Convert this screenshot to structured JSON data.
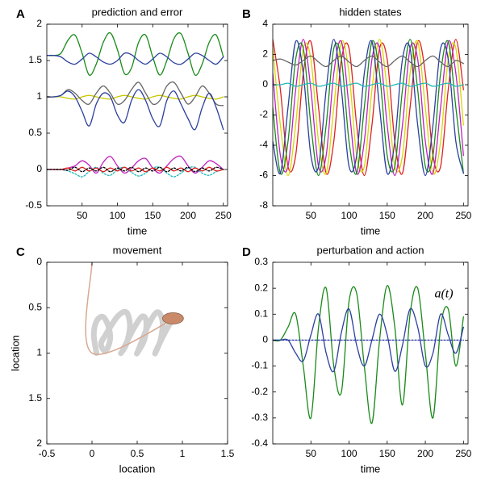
{
  "chart_data": [
    {
      "type": "line",
      "panel": "A",
      "title": "prediction and error",
      "xlabel": "time",
      "xlim": [
        0,
        256
      ],
      "xticks": [
        50,
        100,
        150,
        200,
        250
      ],
      "ylim": [
        -0.5,
        2
      ],
      "yticks": [
        -0.5,
        0,
        0.5,
        1,
        1.5,
        2
      ],
      "x": [
        0,
        10,
        20,
        30,
        40,
        50,
        60,
        70,
        80,
        90,
        100,
        110,
        120,
        130,
        140,
        150,
        160,
        170,
        180,
        190,
        200,
        210,
        220,
        230,
        240,
        250
      ],
      "series": [
        {
          "color": "#1a8a1a",
          "values": [
            1.57,
            1.57,
            1.6,
            1.78,
            1.85,
            1.6,
            1.3,
            1.45,
            1.75,
            1.88,
            1.65,
            1.32,
            1.4,
            1.75,
            1.85,
            1.55,
            1.3,
            1.5,
            1.8,
            1.87,
            1.6,
            1.3,
            1.45,
            1.75,
            1.85,
            1.55
          ]
        },
        {
          "color": "#2b3f9e",
          "values": [
            1.57,
            1.57,
            1.55,
            1.48,
            1.45,
            1.52,
            1.6,
            1.55,
            1.48,
            1.45,
            1.5,
            1.6,
            1.58,
            1.5,
            1.45,
            1.52,
            1.6,
            1.55,
            1.47,
            1.45,
            1.52,
            1.6,
            1.57,
            1.5,
            1.45,
            1.55
          ]
        },
        {
          "color": "#c8c800",
          "values": [
            1,
            1,
            1,
            0.98,
            0.97,
            1,
            1.02,
            1,
            0.98,
            0.97,
            1,
            1.02,
            1,
            0.98,
            0.97,
            1,
            1.02,
            1,
            0.98,
            0.97,
            1,
            1.02,
            1,
            0.98,
            0.97,
            1
          ]
        },
        {
          "color": "#666666",
          "values": [
            1,
            1,
            1.02,
            1.1,
            1.05,
            0.95,
            0.9,
            1.05,
            1.15,
            1.05,
            0.9,
            0.95,
            1.1,
            1.2,
            1.05,
            0.9,
            0.95,
            1.15,
            1.2,
            1.05,
            0.9,
            1.0,
            1.15,
            1.05,
            0.9,
            0.88
          ]
        },
        {
          "color": "#2b3f9e",
          "values": [
            1,
            1,
            1.02,
            1.08,
            1.0,
            0.8,
            0.6,
            0.9,
            1.05,
            1.0,
            0.75,
            0.65,
            0.95,
            1.1,
            0.95,
            0.7,
            0.6,
            0.95,
            1.08,
            0.9,
            0.7,
            0.55,
            0.85,
            1.05,
            0.85,
            0.55
          ]
        },
        {
          "color": "#c020c0",
          "values": [
            0,
            0,
            0,
            0.02,
            0.05,
            0.12,
            0.06,
            -0.05,
            0.1,
            0.18,
            0.05,
            -0.05,
            0.02,
            0.12,
            0.15,
            0.02,
            -0.05,
            0.05,
            0.15,
            0.18,
            0.05,
            -0.05,
            0.03,
            0.12,
            0.08,
            0
          ]
        },
        {
          "color": "#20b8b8",
          "style": "dotted",
          "values": [
            0,
            0,
            0,
            -0.02,
            -0.06,
            -0.1,
            -0.03,
            0.03,
            -0.05,
            -0.08,
            0,
            0.03,
            -0.04,
            -0.09,
            -0.05,
            0.02,
            0.03,
            -0.05,
            -0.1,
            -0.05,
            0.02,
            0.03,
            -0.05,
            -0.08,
            -0.03,
            0
          ]
        },
        {
          "color": "#e02020",
          "values": [
            0,
            0,
            0,
            0.02,
            -0.02,
            0.03,
            -0.02,
            0.02,
            -0.03,
            0.02,
            -0.02,
            0.03,
            -0.02,
            0.02,
            -0.03,
            0.02,
            -0.02,
            0.03,
            -0.02,
            0.02,
            -0.03,
            0.02,
            -0.02,
            0.03,
            -0.02,
            0
          ]
        },
        {
          "color": "#000000",
          "style": "dotted",
          "values": [
            0,
            0,
            0,
            -0.01,
            0.03,
            -0.03,
            0.02,
            -0.02,
            0.03,
            -0.03,
            0.02,
            -0.02,
            0.03,
            -0.03,
            0.02,
            -0.02,
            0.03,
            -0.03,
            0.02,
            -0.02,
            0.03,
            -0.03,
            0.02,
            -0.02,
            0.03,
            0
          ]
        }
      ]
    },
    {
      "type": "line",
      "panel": "B",
      "title": "hidden states",
      "xlabel": "time",
      "xlim": [
        0,
        256
      ],
      "xticks": [
        50,
        100,
        150,
        200,
        250
      ],
      "ylim": [
        -8,
        4
      ],
      "yticks": [
        -8,
        -6,
        -4,
        -2,
        0,
        2,
        4
      ],
      "x": [
        0,
        10,
        20,
        30,
        40,
        50,
        60,
        70,
        80,
        90,
        100,
        110,
        120,
        130,
        140,
        150,
        160,
        170,
        180,
        190,
        200,
        210,
        220,
        230,
        240,
        250
      ],
      "series": [
        {
          "color": "#e02020",
          "values": [
            3,
            -0.33,
            -5.4,
            -4.68,
            0.75,
            2.85,
            -1.5,
            -5.85,
            -3.75,
            1.68,
            2.4,
            -2.67,
            -6,
            -2.67,
            2.4,
            1.68,
            -3.75,
            -5.85,
            -1.5,
            2.85,
            0.75,
            -4.68,
            -5.4,
            -0.33,
            3,
            -0.33
          ]
        },
        {
          "color": "#d8d800",
          "values": [
            2.4,
            -2.67,
            -6,
            -2.67,
            2.4,
            1.68,
            -3.75,
            -5.85,
            -1.5,
            2.85,
            0.75,
            -4.68,
            -5.4,
            -0.33,
            3,
            -0.33,
            -5.4,
            -4.68,
            0.75,
            2.85,
            -1.5,
            -5.85,
            -3.75,
            1.68,
            2.4,
            -2.67
          ]
        },
        {
          "color": "#c020c0",
          "values": [
            0.75,
            -4.68,
            -5.4,
            -0.33,
            3,
            -0.33,
            -5.4,
            -4.68,
            0.75,
            2.85,
            -1.5,
            -5.85,
            -3.75,
            1.68,
            2.4,
            -2.67,
            -6,
            -2.67,
            2.4,
            1.68,
            -3.75,
            -5.85,
            -1.5,
            2.85,
            0.75,
            -4.68
          ]
        },
        {
          "color": "#1a8a1a",
          "values": [
            -1.5,
            -5.85,
            -3.75,
            1.68,
            2.4,
            -2.67,
            -6,
            -2.67,
            2.4,
            1.68,
            -3.75,
            -5.85,
            -1.5,
            2.85,
            0.75,
            -4.68,
            -5.4,
            -0.33,
            3,
            -0.33,
            -5.4,
            -4.68,
            0.75,
            2.85,
            -1.5,
            -5.85
          ]
        },
        {
          "color": "#2b3f9e",
          "values": [
            -3.75,
            -5.85,
            -1.5,
            2.85,
            0.75,
            -4.68,
            -5.4,
            -0.33,
            3,
            -0.33,
            -5.4,
            -4.68,
            0.75,
            2.85,
            -1.5,
            -5.85,
            -3.75,
            1.68,
            2.4,
            -2.67,
            -6,
            -2.67,
            2.4,
            1.68,
            -3.75,
            -5.85
          ]
        },
        {
          "color": "#666666",
          "values": [
            1.6,
            1.7,
            1.5,
            1.3,
            1.6,
            1.9,
            1.5,
            1.2,
            1.6,
            1.9,
            1.5,
            1.2,
            1.6,
            1.9,
            1.5,
            1.2,
            1.6,
            1.9,
            1.5,
            1.2,
            1.6,
            1.9,
            1.5,
            1.2,
            1.6,
            1.4
          ]
        },
        {
          "color": "#20b8b8",
          "values": [
            0,
            0,
            0.1,
            -0.1,
            0,
            0.1,
            -0.1,
            0,
            0.1,
            -0.1,
            0,
            0.1,
            -0.1,
            0,
            0.1,
            -0.1,
            0,
            0.1,
            -0.1,
            0,
            0.1,
            -0.1,
            0,
            0.1,
            -0.1,
            0
          ]
        }
      ]
    },
    {
      "type": "line",
      "panel": "C",
      "title": "movement",
      "xlabel": "location",
      "ylabel": "location",
      "yreverse": true,
      "xlim": [
        -0.5,
        1.5
      ],
      "xticks": [
        -0.5,
        0,
        0.5,
        1,
        1.5
      ],
      "ylim": [
        0,
        2
      ],
      "yticks": [
        0,
        0.5,
        1,
        1.5,
        2
      ],
      "series": [
        {
          "color": "#d0d0d0",
          "width": 7,
          "x": [
            0.05,
            0.02,
            0.05,
            0.12,
            0.18,
            0.2,
            0.15,
            0.1,
            0.15,
            0.28,
            0.38,
            0.42,
            0.38,
            0.32,
            0.35,
            0.45,
            0.55,
            0.6,
            0.58,
            0.5,
            0.52,
            0.62,
            0.72,
            0.78,
            0.76,
            0.7,
            0.72,
            0.82,
            0.9,
            0.95
          ],
          "values": [
            1.0,
            0.8,
            0.65,
            0.6,
            0.7,
            0.85,
            0.98,
            0.9,
            0.8,
            0.6,
            0.55,
            0.7,
            0.9,
            1.0,
            0.95,
            0.75,
            0.6,
            0.65,
            0.85,
            1.0,
            0.95,
            0.7,
            0.55,
            0.65,
            0.85,
            1.0,
            0.95,
            0.75,
            0.62,
            0.6
          ]
        },
        {
          "color": "#d8a890",
          "width": 1.5,
          "x": [
            0,
            0,
            0.95
          ],
          "values": [
            0,
            1,
            0.6
          ]
        }
      ]
    },
    {
      "type": "line",
      "panel": "D",
      "title": "perturbation and action",
      "xlabel": "time",
      "annotation": "a(t)",
      "xlim": [
        0,
        256
      ],
      "xticks": [
        50,
        100,
        150,
        200,
        250
      ],
      "ylim": [
        -0.4,
        0.3
      ],
      "yticks": [
        -0.4,
        -0.3,
        -0.2,
        -0.1,
        0,
        0.1,
        0.2,
        0.3
      ],
      "x": [
        0,
        10,
        20,
        30,
        40,
        50,
        60,
        70,
        80,
        90,
        100,
        110,
        120,
        130,
        140,
        150,
        160,
        170,
        180,
        190,
        200,
        210,
        220,
        230,
        240,
        250
      ],
      "series": [
        {
          "color": "#1a8a1a",
          "values": [
            0,
            0,
            0.05,
            0.1,
            -0.1,
            -0.3,
            0.05,
            0.2,
            -0.1,
            -0.2,
            0.15,
            0.18,
            -0.1,
            -0.32,
            0,
            0.21,
            0.05,
            -0.25,
            0.1,
            0.2,
            -0.05,
            -0.3,
            0.05,
            0.12,
            -0.1,
            0.09
          ]
        },
        {
          "color": "#2b3f9e",
          "values": [
            0,
            0,
            0,
            -0.05,
            -0.08,
            0.02,
            0.1,
            -0.05,
            -0.12,
            0.03,
            0.12,
            -0.02,
            -0.1,
            0,
            0.1,
            0.02,
            -0.12,
            -0.02,
            0.12,
            0.05,
            -0.1,
            -0.05,
            0.1,
            0.02,
            -0.05,
            0.05
          ]
        },
        {
          "color": "#2b3f9e",
          "style": "dotted",
          "values": [
            0,
            0,
            0,
            0,
            0,
            0,
            0,
            0,
            0,
            0,
            0,
            0,
            0,
            0,
            0,
            0,
            0,
            0,
            0,
            0,
            0,
            0,
            0,
            0,
            0,
            0
          ]
        }
      ]
    }
  ]
}
